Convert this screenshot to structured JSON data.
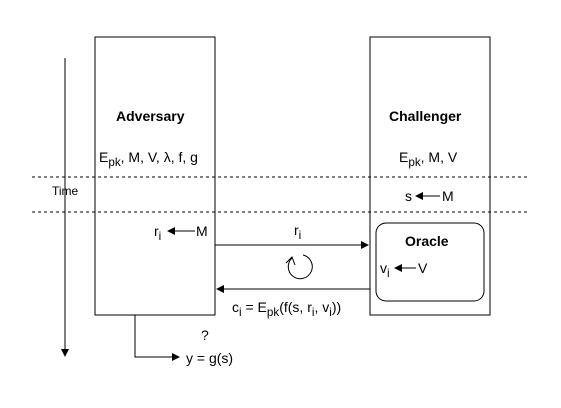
{
  "diagram": {
    "time_label": "Time",
    "adversary": {
      "title": "Adversary",
      "params": {
        "E": "E",
        "E_sub": "pk",
        "rest": ", M, V, λ, f, g"
      },
      "sample": {
        "var": "r",
        "sub": "i",
        "source": "M"
      }
    },
    "challenger": {
      "title": "Challenger",
      "params": {
        "E": "E",
        "E_sub": "pk",
        "rest": ", M, V"
      },
      "sample": {
        "var": "s",
        "source": "M"
      }
    },
    "oracle": {
      "title": "Oracle",
      "sample": {
        "var": "v",
        "sub": "i",
        "source": "V"
      }
    },
    "query_message": {
      "var": "r",
      "sub": "i"
    },
    "response_message": {
      "c": "c",
      "c_sub": "i",
      "eq": " = E",
      "E_sub": "pk",
      "open": "(f(s, r",
      "r_sub": "i",
      "mid": ", v",
      "v_sub": "i",
      "close": "))"
    },
    "guess_mark": "?",
    "output": "y = g(s)",
    "colors": {
      "stroke": "#000000",
      "background": "#ffffff"
    }
  }
}
